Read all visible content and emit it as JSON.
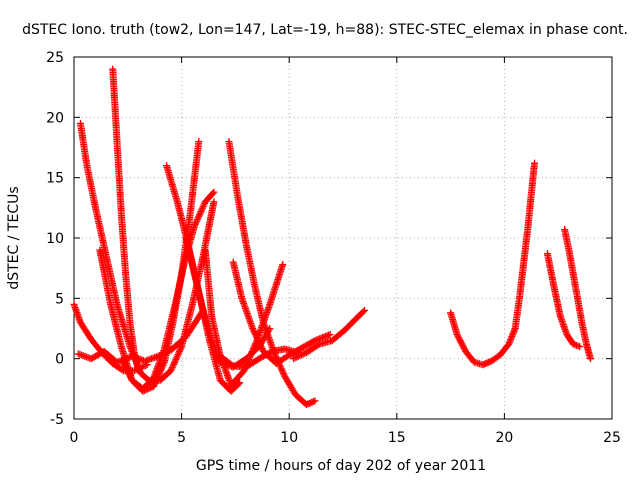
{
  "chart_data": {
    "type": "scatter",
    "title": "dSTEC Iono. truth (tow2, Lon=147, Lat=-19, h=88): STEC-STEC_elemax in phase cont.",
    "xlabel": "GPS time / hours of day 202 of year 2011",
    "ylabel": "dSTEC  / TECUs",
    "xlim": [
      0,
      25
    ],
    "ylim": [
      -5,
      25
    ],
    "xticks": [
      "0",
      "5",
      "10",
      "15",
      "20",
      "25"
    ],
    "yticks": [
      "-5",
      "0",
      "5",
      "10",
      "15",
      "20",
      "25"
    ],
    "grid": true,
    "marker": "+",
    "color": "#ff0000",
    "series": [
      {
        "x": [
          0.0,
          0.3,
          0.8,
          1.3,
          1.8,
          2.3,
          2.8,
          3.4
        ],
        "y": [
          4.5,
          3.0,
          1.6,
          0.5,
          -0.4,
          -1.0,
          -1.0,
          -0.5
        ]
      },
      {
        "x": [
          0.3,
          0.6,
          1.0,
          1.5,
          2.0,
          2.6,
          3.1,
          3.6
        ],
        "y": [
          19.5,
          16.0,
          12.5,
          8.5,
          4.5,
          1.0,
          -1.2,
          -2.0
        ]
      },
      {
        "x": [
          1.8,
          2.0,
          2.2,
          2.4,
          2.6,
          2.8,
          3.0
        ],
        "y": [
          24.0,
          18.0,
          12.0,
          7.0,
          3.0,
          0.5,
          -1.0
        ]
      },
      {
        "x": [
          0.2,
          0.8,
          1.4,
          2.0,
          2.7,
          3.3,
          3.9,
          4.5,
          5.2,
          6.0
        ],
        "y": [
          0.4,
          0.0,
          0.6,
          -0.3,
          0.2,
          -0.2,
          0.2,
          0.7,
          1.8,
          4.0
        ]
      },
      {
        "x": [
          1.2,
          1.7,
          2.2,
          2.7,
          3.2,
          3.7,
          4.2,
          4.7,
          5.2,
          5.6,
          6.1,
          6.5
        ],
        "y": [
          9.0,
          4.5,
          1.0,
          -1.8,
          -2.5,
          -1.6,
          0.8,
          4.5,
          8.5,
          11.0,
          13.0,
          13.8
        ]
      },
      {
        "x": [
          2.3,
          2.7,
          3.2,
          3.7,
          4.2,
          4.6,
          5.0,
          5.4,
          5.8
        ],
        "y": [
          -0.3,
          -1.8,
          -2.7,
          -2.3,
          -0.3,
          3.0,
          7.0,
          12.0,
          18.0
        ]
      },
      {
        "x": [
          3.5,
          4.0,
          4.5,
          5.0,
          5.5,
          6.0,
          6.5
        ],
        "y": [
          -1.8,
          -1.8,
          -1.0,
          1.0,
          4.5,
          8.5,
          13.0
        ]
      },
      {
        "x": [
          4.3,
          4.8,
          5.3,
          5.8,
          6.3,
          6.8,
          7.3,
          7.7
        ],
        "y": [
          16.0,
          13.0,
          9.5,
          5.5,
          1.5,
          -1.8,
          -2.7,
          -2.0
        ]
      },
      {
        "x": [
          5.2,
          5.6,
          6.0,
          6.4,
          6.8,
          7.4,
          8.0,
          8.6,
          9.1
        ],
        "y": [
          10.0,
          7.0,
          4.0,
          1.5,
          -0.3,
          -0.7,
          0.0,
          1.0,
          2.5
        ]
      },
      {
        "x": [
          6.1,
          6.4,
          6.8,
          7.3,
          7.9,
          8.5,
          9.1,
          9.7
        ],
        "y": [
          9.0,
          3.5,
          0.2,
          -2.2,
          -1.0,
          1.5,
          4.5,
          7.8
        ]
      },
      {
        "x": [
          7.2,
          7.6,
          8.0,
          8.4,
          8.8,
          9.3,
          9.8,
          10.3,
          10.8,
          11.2
        ],
        "y": [
          18.0,
          13.5,
          9.5,
          6.0,
          3.0,
          0.5,
          -1.5,
          -3.0,
          -3.8,
          -3.5
        ]
      },
      {
        "x": [
          7.4,
          7.8,
          8.3,
          8.8,
          9.4,
          10.0,
          10.6,
          11.2,
          11.9
        ],
        "y": [
          8.0,
          5.0,
          2.5,
          0.6,
          -0.4,
          0.3,
          0.9,
          1.5,
          2.0
        ]
      },
      {
        "x": [
          6.8,
          7.4,
          8.0,
          8.6,
          9.2,
          9.8,
          10.4
        ],
        "y": [
          0.2,
          -0.6,
          -0.7,
          0.0,
          0.6,
          0.8,
          0.5
        ]
      },
      {
        "x": [
          10.2,
          10.8,
          11.4,
          12.0,
          12.6,
          13.1,
          13.5
        ],
        "y": [
          0.0,
          0.5,
          1.2,
          1.5,
          2.4,
          3.3,
          4.0
        ]
      },
      {
        "x": [
          17.5,
          17.8,
          18.2,
          18.6,
          19.0,
          19.4,
          19.8,
          20.2,
          20.5
        ],
        "y": [
          3.8,
          2.0,
          0.6,
          -0.3,
          -0.5,
          -0.2,
          0.3,
          1.2,
          2.5
        ]
      },
      {
        "x": [
          20.5,
          20.7,
          20.9,
          21.1,
          21.3,
          21.4
        ],
        "y": [
          2.5,
          5.0,
          8.0,
          11.0,
          14.5,
          16.2
        ]
      },
      {
        "x": [
          22.0,
          22.3,
          22.6,
          22.9,
          23.2,
          23.5
        ],
        "y": [
          8.7,
          6.0,
          3.5,
          2.0,
          1.2,
          1.0
        ]
      },
      {
        "x": [
          22.8,
          23.0,
          23.2,
          23.4,
          23.6,
          23.8,
          24.0
        ],
        "y": [
          10.7,
          9.0,
          7.0,
          5.0,
          3.0,
          1.3,
          0.0
        ]
      }
    ]
  }
}
